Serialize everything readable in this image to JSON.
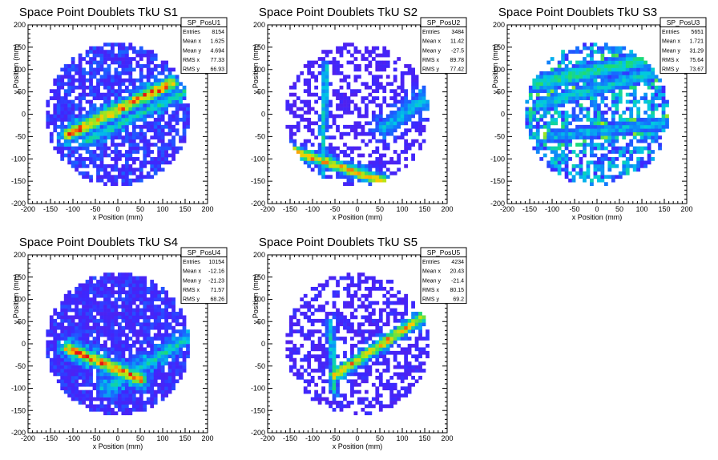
{
  "chart_data": [
    {
      "type": "heatmap",
      "title": "Space Point Doublets TkU S1",
      "xlabel": "x Position (mm)",
      "ylabel": "y Position (mm)",
      "xlim": [
        -200,
        200
      ],
      "ylim": [
        -200,
        200
      ],
      "xticks": [
        -200,
        -150,
        -100,
        -50,
        0,
        50,
        100,
        150,
        200
      ],
      "yticks": [
        -200,
        -150,
        -100,
        -50,
        0,
        50,
        100,
        150,
        200
      ],
      "stats": {
        "name": "SP_PosU1",
        "rows": [
          {
            "label": "Entries",
            "value": "8154"
          },
          {
            "label": "Mean x",
            "value": "1.625"
          },
          {
            "label": "Mean y",
            "value": "4.694"
          },
          {
            "label": "RMS x",
            "value": "77.33"
          },
          {
            "label": "RMS y",
            "value": "66.93"
          }
        ]
      },
      "pattern": {
        "seed": 11,
        "radius": 160,
        "background_density": 0.72,
        "background_level": 0.2,
        "tracks": [
          {
            "x1": -110,
            "y1": -45,
            "x2": 120,
            "y2": 70,
            "width": 12,
            "peak": 0.95
          },
          {
            "x1": -70,
            "y1": -60,
            "x2": 150,
            "y2": 50,
            "width": 10,
            "peak": 0.55
          }
        ]
      }
    },
    {
      "type": "heatmap",
      "title": "Space Point Doublets TkU S2",
      "xlabel": "x Position (mm)",
      "ylabel": "y Position (mm)",
      "xlim": [
        -200,
        200
      ],
      "ylim": [
        -200,
        200
      ],
      "xticks": [
        -200,
        -150,
        -100,
        -50,
        0,
        50,
        100,
        150,
        200
      ],
      "yticks": [
        -200,
        -150,
        -100,
        -50,
        0,
        50,
        100,
        150,
        200
      ],
      "stats": {
        "name": "SP_PosU2",
        "rows": [
          {
            "label": "Entries",
            "value": "3484"
          },
          {
            "label": "Mean x",
            "value": "11.42"
          },
          {
            "label": "Mean y",
            "value": "-27.5"
          },
          {
            "label": "RMS x",
            "value": "89.78"
          },
          {
            "label": "RMS y",
            "value": "77.42"
          }
        ]
      },
      "pattern": {
        "seed": 23,
        "radius": 160,
        "background_density": 0.48,
        "background_level": 0.12,
        "tracks": [
          {
            "x1": -80,
            "y1": -160,
            "x2": -70,
            "y2": 110,
            "width": 6,
            "peak": 0.55
          },
          {
            "x1": -150,
            "y1": -80,
            "x2": 60,
            "y2": -150,
            "width": 10,
            "peak": 0.9
          },
          {
            "x1": 60,
            "y1": -30,
            "x2": 160,
            "y2": 40,
            "width": 18,
            "peak": 0.45
          }
        ]
      }
    },
    {
      "type": "heatmap",
      "title": "Space Point Doublets TkU S3",
      "xlabel": "x Position (mm)",
      "ylabel": "y Position (mm)",
      "xlim": [
        -200,
        200
      ],
      "ylim": [
        -200,
        200
      ],
      "xticks": [
        -200,
        -150,
        -100,
        -50,
        0,
        50,
        100,
        150,
        200
      ],
      "yticks": [
        -200,
        -150,
        -100,
        -50,
        0,
        50,
        100,
        150,
        200
      ],
      "stats": {
        "name": "SP_PosU3",
        "rows": [
          {
            "label": "Entries",
            "value": "5651"
          },
          {
            "label": "Mean x",
            "value": "1.721"
          },
          {
            "label": "Mean y",
            "value": "31.29"
          },
          {
            "label": "RMS x",
            "value": "75.64"
          },
          {
            "label": "RMS y",
            "value": "73.67"
          }
        ]
      },
      "pattern": {
        "seed": 37,
        "radius": 160,
        "background_density": 0.62,
        "background_level": 0.35,
        "tracks": [
          {
            "x1": -130,
            "y1": 70,
            "x2": 140,
            "y2": 130,
            "width": 16,
            "peak": 0.6
          },
          {
            "x1": -130,
            "y1": 20,
            "x2": 150,
            "y2": 100,
            "width": 14,
            "peak": 0.5
          },
          {
            "x1": -100,
            "y1": -50,
            "x2": 150,
            "y2": -20,
            "width": 14,
            "peak": 0.45
          }
        ]
      }
    },
    {
      "type": "heatmap",
      "title": "Space Point Doublets TkU S4",
      "xlabel": "x Position (mm)",
      "ylabel": "y Position (mm)",
      "xlim": [
        -200,
        200
      ],
      "ylim": [
        -200,
        200
      ],
      "xticks": [
        -200,
        -150,
        -100,
        -50,
        0,
        50,
        100,
        150,
        200
      ],
      "yticks": [
        -200,
        -150,
        -100,
        -50,
        0,
        50,
        100,
        150,
        200
      ],
      "stats": {
        "name": "SP_PosU4",
        "rows": [
          {
            "label": "Entries",
            "value": "10154"
          },
          {
            "label": "Mean x",
            "value": "-12.16"
          },
          {
            "label": "Mean y",
            "value": "-21.23"
          },
          {
            "label": "RMS x",
            "value": "71.57"
          },
          {
            "label": "RMS y",
            "value": "68.26"
          }
        ]
      },
      "pattern": {
        "seed": 51,
        "radius": 160,
        "background_density": 0.88,
        "background_level": 0.18,
        "tracks": [
          {
            "x1": -110,
            "y1": -10,
            "x2": 50,
            "y2": -80,
            "width": 12,
            "peak": 0.95
          },
          {
            "x1": -20,
            "y1": -100,
            "x2": 150,
            "y2": 10,
            "width": 12,
            "peak": 0.55
          }
        ]
      }
    },
    {
      "type": "heatmap",
      "title": "Space Point Doublets TkU S5",
      "xlabel": "x Position (mm)",
      "ylabel": "y Position (mm)",
      "xlim": [
        -200,
        200
      ],
      "ylim": [
        -200,
        200
      ],
      "xticks": [
        -200,
        -150,
        -100,
        -50,
        0,
        50,
        100,
        150,
        200
      ],
      "yticks": [
        -200,
        -150,
        -100,
        -50,
        0,
        50,
        100,
        150,
        200
      ],
      "stats": {
        "name": "SP_PosU5",
        "rows": [
          {
            "label": "Entries",
            "value": "4234"
          },
          {
            "label": "Mean x",
            "value": "20.43"
          },
          {
            "label": "Mean y",
            "value": "-21.4"
          },
          {
            "label": "RMS x",
            "value": "80.15"
          },
          {
            "label": "RMS y",
            "value": "69.2"
          }
        ]
      },
      "pattern": {
        "seed": 67,
        "radius": 160,
        "background_density": 0.5,
        "background_level": 0.14,
        "tracks": [
          {
            "x1": -60,
            "y1": 50,
            "x2": -50,
            "y2": -110,
            "width": 6,
            "peak": 0.55
          },
          {
            "x1": -50,
            "y1": -70,
            "x2": 160,
            "y2": 70,
            "width": 10,
            "peak": 0.9
          }
        ]
      }
    }
  ]
}
